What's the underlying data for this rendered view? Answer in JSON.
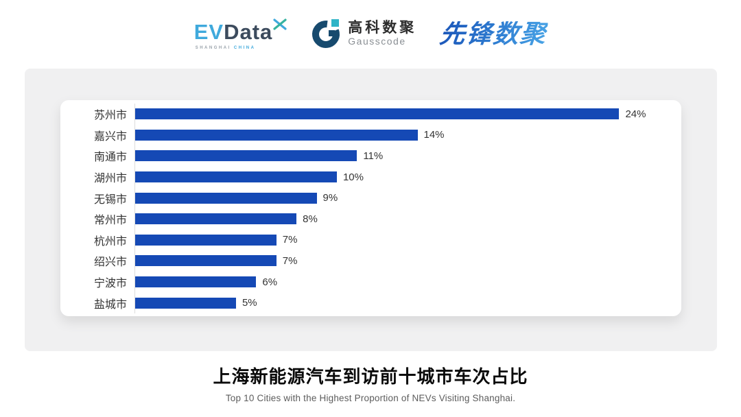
{
  "header": {
    "evdata": {
      "ev": "EV",
      "data": "Data",
      "sub_shanghai": "SHANGHAI",
      "sub_china": "CHINA",
      "ev_color": "#3fa9dc",
      "data_color": "#3c4b5d"
    },
    "gausscode": {
      "cn": "高科数聚",
      "en": "Gausscode",
      "mark_color": "#174a6e",
      "accent_color": "#2fb4c7"
    },
    "xianfeng": {
      "text": "先锋数聚",
      "color_start": "#1b55b8",
      "color_end": "#49a4e6"
    }
  },
  "chart_data": {
    "type": "bar",
    "orientation": "horizontal",
    "title": "上海新能源汽车到访前十城市车次占比",
    "categories": [
      "苏州市",
      "嘉兴市",
      "南通市",
      "湖州市",
      "无锡市",
      "常州市",
      "杭州市",
      "绍兴市",
      "宁波市",
      "盐城市"
    ],
    "values": [
      24,
      14,
      11,
      10,
      9,
      8,
      7,
      7,
      6,
      5
    ],
    "value_labels": [
      "24%",
      "14%",
      "11%",
      "10%",
      "9%",
      "8%",
      "7%",
      "7%",
      "6%",
      "5%"
    ],
    "xlim": [
      0,
      26.4
    ],
    "bar_color": "#1549b5",
    "axis_line_color": "#dcdcdc",
    "grid": false,
    "legend": false,
    "value_labels_position": "end-of-bar"
  },
  "footer": {
    "title": "上海新能源汽车到访前十城市车次占比",
    "subtitle": "Top 10 Cities with the Highest Proportion of  NEVs Visiting Shanghai."
  }
}
